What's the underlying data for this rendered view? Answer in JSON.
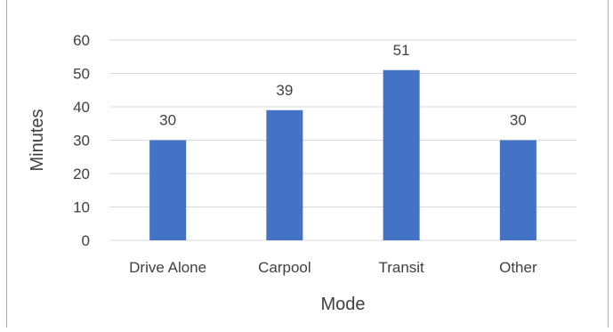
{
  "chart_data": {
    "type": "bar",
    "categories": [
      "Drive Alone",
      "Carpool",
      "Transit",
      "Other"
    ],
    "values": [
      30,
      39,
      51,
      30
    ],
    "data_labels": [
      "30",
      "39",
      "51",
      "30"
    ],
    "title": "",
    "xlabel": "Mode",
    "ylabel": "Minutes",
    "ylim": [
      0,
      60
    ],
    "yticks": [
      0,
      10,
      20,
      30,
      40,
      50,
      60
    ],
    "grid": true,
    "legend": "none",
    "colors": {
      "bar": "#4472c4",
      "grid": "#d9d9d9",
      "text": "#404040",
      "frame": "#a7a7d8"
    }
  }
}
